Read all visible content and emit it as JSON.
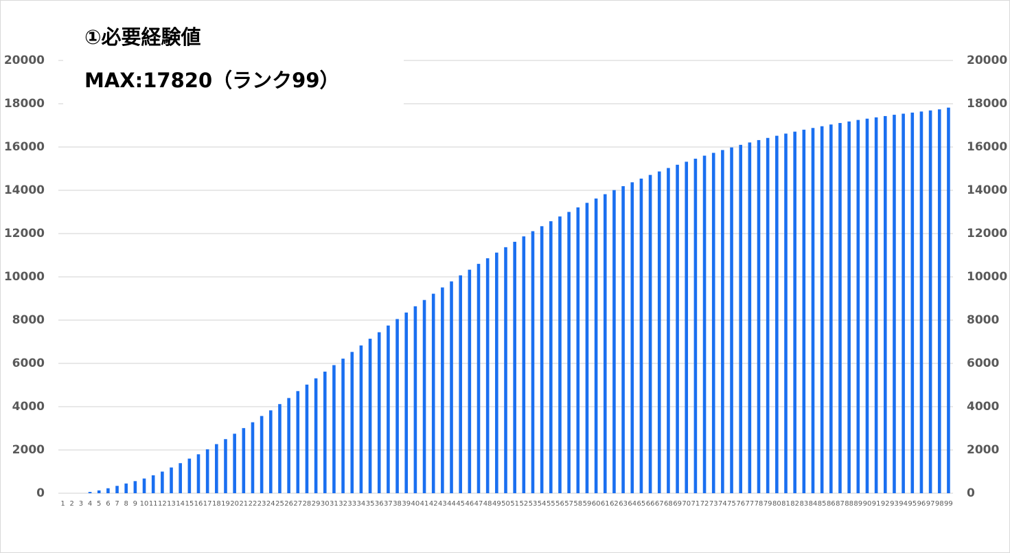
{
  "chart_data": {
    "type": "bar",
    "title": "①必要経験値",
    "subtitle": "MAX:17820（ランク99）",
    "categories": [
      "1",
      "2",
      "3",
      "4",
      "5",
      "6",
      "7",
      "8",
      "9",
      "10",
      "11",
      "12",
      "13",
      "14",
      "15",
      "16",
      "17",
      "18",
      "19",
      "20",
      "21",
      "22",
      "23",
      "24",
      "25",
      "26",
      "27",
      "28",
      "29",
      "30",
      "31",
      "32",
      "33",
      "34",
      "35",
      "36",
      "37",
      "38",
      "39",
      "40",
      "41",
      "42",
      "43",
      "44",
      "45",
      "46",
      "47",
      "48",
      "49",
      "50",
      "51",
      "52",
      "53",
      "54",
      "55",
      "56",
      "57",
      "58",
      "59",
      "60",
      "61",
      "62",
      "63",
      "64",
      "65",
      "66",
      "67",
      "68",
      "69",
      "70",
      "71",
      "72",
      "73",
      "74",
      "75",
      "76",
      "77",
      "78",
      "79",
      "80",
      "81",
      "82",
      "83",
      "84",
      "85",
      "86",
      "87",
      "88",
      "89",
      "90",
      "91",
      "92",
      "93",
      "94",
      "95",
      "96",
      "97",
      "98",
      "99"
    ],
    "values": [
      0,
      0,
      0,
      60,
      130,
      230,
      340,
      450,
      560,
      680,
      830,
      1000,
      1190,
      1390,
      1600,
      1800,
      2030,
      2270,
      2500,
      2750,
      3010,
      3280,
      3570,
      3830,
      4120,
      4400,
      4720,
      5020,
      5310,
      5620,
      5920,
      6220,
      6530,
      6830,
      7140,
      7440,
      7750,
      8050,
      8350,
      8640,
      8930,
      9220,
      9510,
      9790,
      10070,
      10330,
      10600,
      10860,
      11120,
      11370,
      11620,
      11870,
      12110,
      12340,
      12570,
      12790,
      13000,
      13210,
      13420,
      13620,
      13820,
      14010,
      14190,
      14370,
      14540,
      14710,
      14870,
      15030,
      15180,
      15320,
      15460,
      15600,
      15730,
      15860,
      15980,
      16100,
      16210,
      16320,
      16420,
      16520,
      16620,
      16710,
      16800,
      16880,
      16960,
      17040,
      17110,
      17180,
      17250,
      17310,
      17370,
      17430,
      17490,
      17540,
      17590,
      17640,
      17690,
      17740,
      17820
    ],
    "color": "#1a6ff0",
    "ylim": [
      0,
      20000
    ],
    "yticks": [
      0,
      2000,
      4000,
      6000,
      8000,
      10000,
      12000,
      14000,
      16000,
      18000,
      20000
    ],
    "y2lim": [
      0,
      20000
    ],
    "y2ticks": [
      0,
      2000,
      4000,
      6000,
      8000,
      10000,
      12000,
      14000,
      16000,
      18000,
      20000
    ],
    "grid": true
  }
}
